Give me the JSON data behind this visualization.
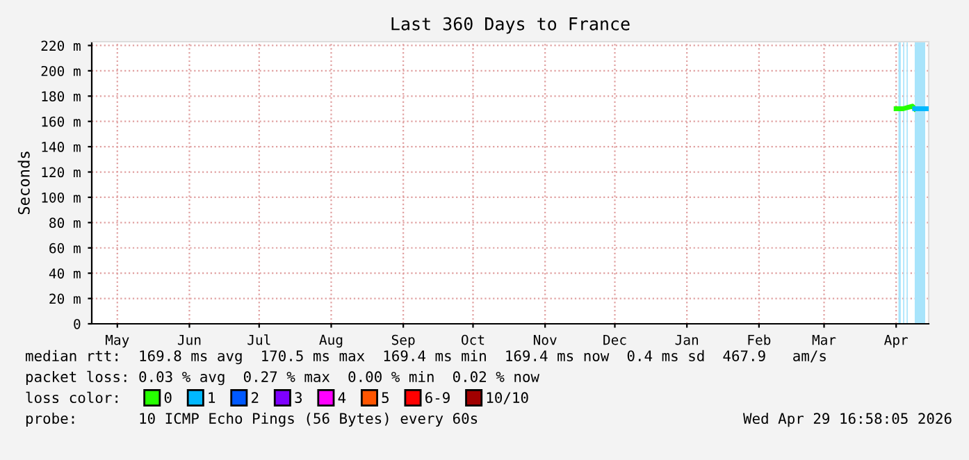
{
  "chart_data": {
    "type": "line",
    "title": "Last 360 Days to France",
    "ylabel": "Seconds",
    "xlim": [
      "2025-05-04",
      "2026-04-29"
    ],
    "xticks": [
      {
        "value": "2025-05-15",
        "label": "May"
      },
      {
        "value": "2025-06-15",
        "label": "Jun"
      },
      {
        "value": "2025-07-15",
        "label": "Jul"
      },
      {
        "value": "2025-08-15",
        "label": "Aug"
      },
      {
        "value": "2025-09-15",
        "label": "Sep"
      },
      {
        "value": "2025-10-15",
        "label": "Oct"
      },
      {
        "value": "2025-11-15",
        "label": "Nov"
      },
      {
        "value": "2025-12-15",
        "label": "Dec"
      },
      {
        "value": "2026-01-15",
        "label": "Jan"
      },
      {
        "value": "2026-02-15",
        "label": "Feb"
      },
      {
        "value": "2026-03-15",
        "label": "Mar"
      },
      {
        "value": "2026-04-15",
        "label": "Apr"
      }
    ],
    "ylim": [
      0,
      223
    ],
    "yticks": [
      0,
      {
        "value": 20,
        "label": "20 m"
      },
      {
        "value": 40,
        "label": "40 m"
      },
      {
        "value": 60,
        "label": "60 m"
      },
      {
        "value": 80,
        "label": "80 m"
      },
      {
        "value": 100,
        "label": "100 m"
      },
      {
        "value": 120,
        "label": "120 m"
      },
      {
        "value": 140,
        "label": "140 m"
      },
      {
        "value": 160,
        "label": "160 m"
      },
      {
        "value": 180,
        "label": "180 m"
      },
      {
        "value": 200,
        "label": "200 m"
      },
      {
        "value": 220,
        "label": "220 m"
      }
    ],
    "grid": true,
    "legend": "bottom",
    "marker": "none",
    "line_style": "solid",
    "series": [
      {
        "name": "0",
        "color": "#26ff00",
        "x": [
          "2026-04-15",
          "2026-04-18",
          "2026-04-20",
          "2026-04-22",
          "2026-04-23"
        ],
        "values": [
          170,
          170,
          171,
          172,
          170
        ]
      },
      {
        "name": "1",
        "color": "#00b8ff",
        "x": [
          "2026-04-23",
          "2026-04-28"
        ],
        "values": [
          170,
          170
        ]
      },
      {
        "name": "2",
        "color": "#0059ff"
      },
      {
        "name": "3",
        "color": "#7e00ff"
      },
      {
        "name": "4",
        "color": "#ff00ff"
      },
      {
        "name": "5",
        "color": "#ff5500"
      },
      {
        "name": "6-9",
        "color": "#ff0000"
      },
      {
        "name": "10/10",
        "color": "#a10000"
      }
    ],
    "bands": [
      {
        "axis": "x",
        "from": "2026-04-16",
        "to": "2026-04-17",
        "color": "#a8e4fb"
      },
      {
        "axis": "x",
        "from": "2026-04-18",
        "to": "2026-04-18T12:00",
        "color": "#a8e4fb"
      },
      {
        "axis": "x",
        "from": "2026-04-19T12:00",
        "to": "2026-04-20",
        "color": "#a8e4fb"
      },
      {
        "axis": "x",
        "from": "2026-04-23",
        "to": "2026-04-27T12:00",
        "color": "#a8e4fb"
      }
    ],
    "annotations": [
      "median rtt:  169.8 ms avg  170.5 ms max  169.4 ms min  169.4 ms now  0.4 ms sd  467.9   am/s",
      "packet loss: 0.03 % avg  0.27 % max  0.00 % min  0.02 % now",
      "loss color:",
      "probe:       10 ICMP Echo Pings (56 Bytes) every 60s",
      "Wed Apr 29 16:58:05 2026"
    ]
  }
}
